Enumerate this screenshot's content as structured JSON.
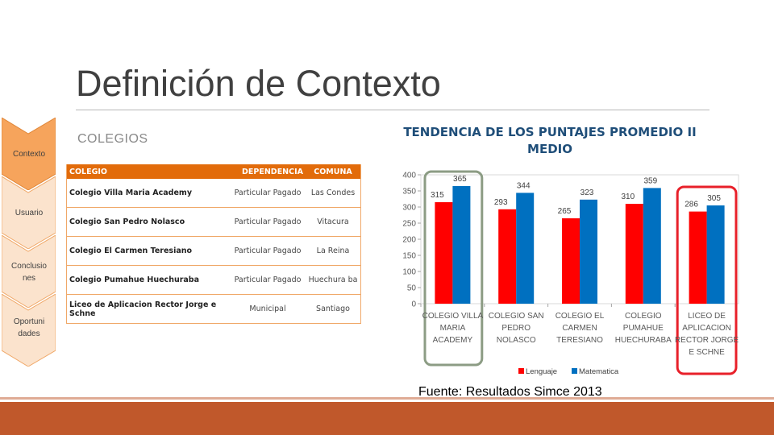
{
  "title": "Definición de Contexto",
  "section_label": "COLEGIOS",
  "nav": [
    {
      "label": "Contexto"
    },
    {
      "label": "Usuario"
    },
    {
      "label": "Conclusio nes"
    },
    {
      "label": "Oportuni dades"
    }
  ],
  "table": {
    "headers": [
      "COLEGIO",
      "DEPENDENCIA",
      "COMUNA"
    ],
    "rows": [
      [
        "Colegio Villa Maria Academy",
        "Particular Pagado",
        "Las Condes"
      ],
      [
        "Colegio San Pedro Nolasco",
        "Particular Pagado",
        "Vitacura"
      ],
      [
        "Colegio El Carmen Teresiano",
        "Particular Pagado",
        "La Reina"
      ],
      [
        "Colegio Pumahue Huechuraba",
        "Particular Pagado",
        "Huechura ba"
      ],
      [
        "Liceo de Aplicacion Rector Jorge e Schne",
        "Municipal",
        "Santiago"
      ]
    ]
  },
  "source": "Fuente: Resultados Simce 2013",
  "colors": {
    "accent": "#e26b0a",
    "lenguaje": "#ff0000",
    "matematica": "#0070c0",
    "highlight_green": "#8c9c84",
    "highlight_red": "#e8202a"
  },
  "chart_data": {
    "type": "bar",
    "title": "TENDENCIA DE LOS PUNTAJES PROMEDIO II MEDIO",
    "categories": [
      [
        "COLEGIO VILLA",
        "MARIA",
        "ACADEMY"
      ],
      [
        "COLEGIO SAN",
        "PEDRO",
        "NOLASCO"
      ],
      [
        "COLEGIO EL",
        "CARMEN",
        "TERESIANO"
      ],
      [
        "COLEGIO",
        "PUMAHUE",
        "HUECHURABA"
      ],
      [
        "LICEO DE",
        "APLICACION",
        "RECTOR JORGE",
        "E SCHNE"
      ]
    ],
    "series": [
      {
        "name": "Lenguaje",
        "values": [
          315,
          293,
          265,
          310,
          286
        ]
      },
      {
        "name": "Matematica",
        "values": [
          365,
          344,
          323,
          359,
          305
        ]
      }
    ],
    "ylim": [
      0,
      400
    ],
    "yticks": [
      0,
      50,
      100,
      150,
      200,
      250,
      300,
      350,
      400
    ],
    "grid": false,
    "legend": "bottom"
  }
}
